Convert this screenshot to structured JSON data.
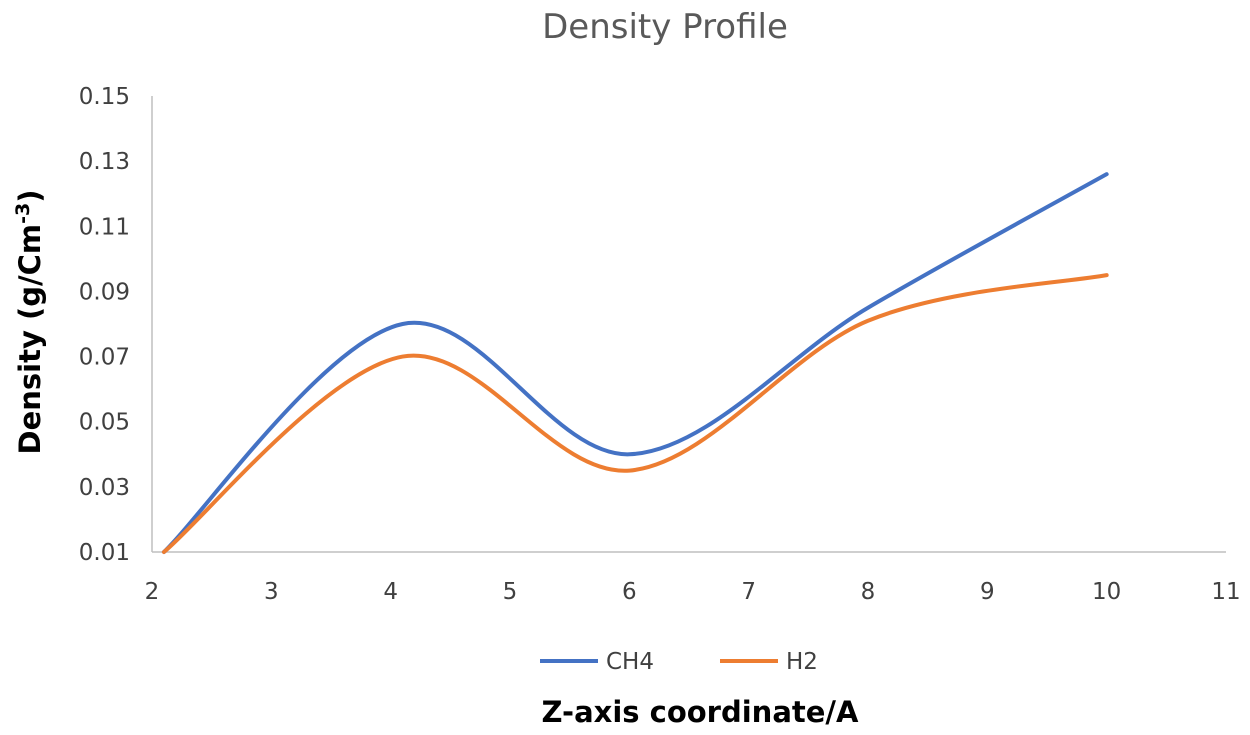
{
  "chart_data": {
    "type": "line",
    "title": "Density Profile",
    "xlabel": "Z-axis coordinate/A",
    "ylabel": {
      "prefix": "Density (g/Cm",
      "superscript": "-3",
      "suffix": ")"
    },
    "xlim": [
      2,
      11
    ],
    "ylim": [
      0.01,
      0.15
    ],
    "x_ticks": [
      "2",
      "3",
      "4",
      "5",
      "6",
      "7",
      "8",
      "9",
      "10",
      "11"
    ],
    "y_ticks": [
      "0.01",
      "0.03",
      "0.05",
      "0.07",
      "0.09",
      "0.11",
      "0.13",
      "0.15"
    ],
    "grid": false,
    "legend_position": "bottom",
    "series": [
      {
        "name": "CH4",
        "color": "#4472c4",
        "x": [
          2.1,
          4.1,
          6.0,
          8.0,
          10.0
        ],
        "y": [
          0.01,
          0.08,
          0.04,
          0.085,
          0.126
        ]
      },
      {
        "name": "H2",
        "color": "#ed7d31",
        "x": [
          2.1,
          4.1,
          6.0,
          8.0,
          10.0
        ],
        "y": [
          0.01,
          0.07,
          0.035,
          0.081,
          0.095
        ]
      }
    ]
  }
}
